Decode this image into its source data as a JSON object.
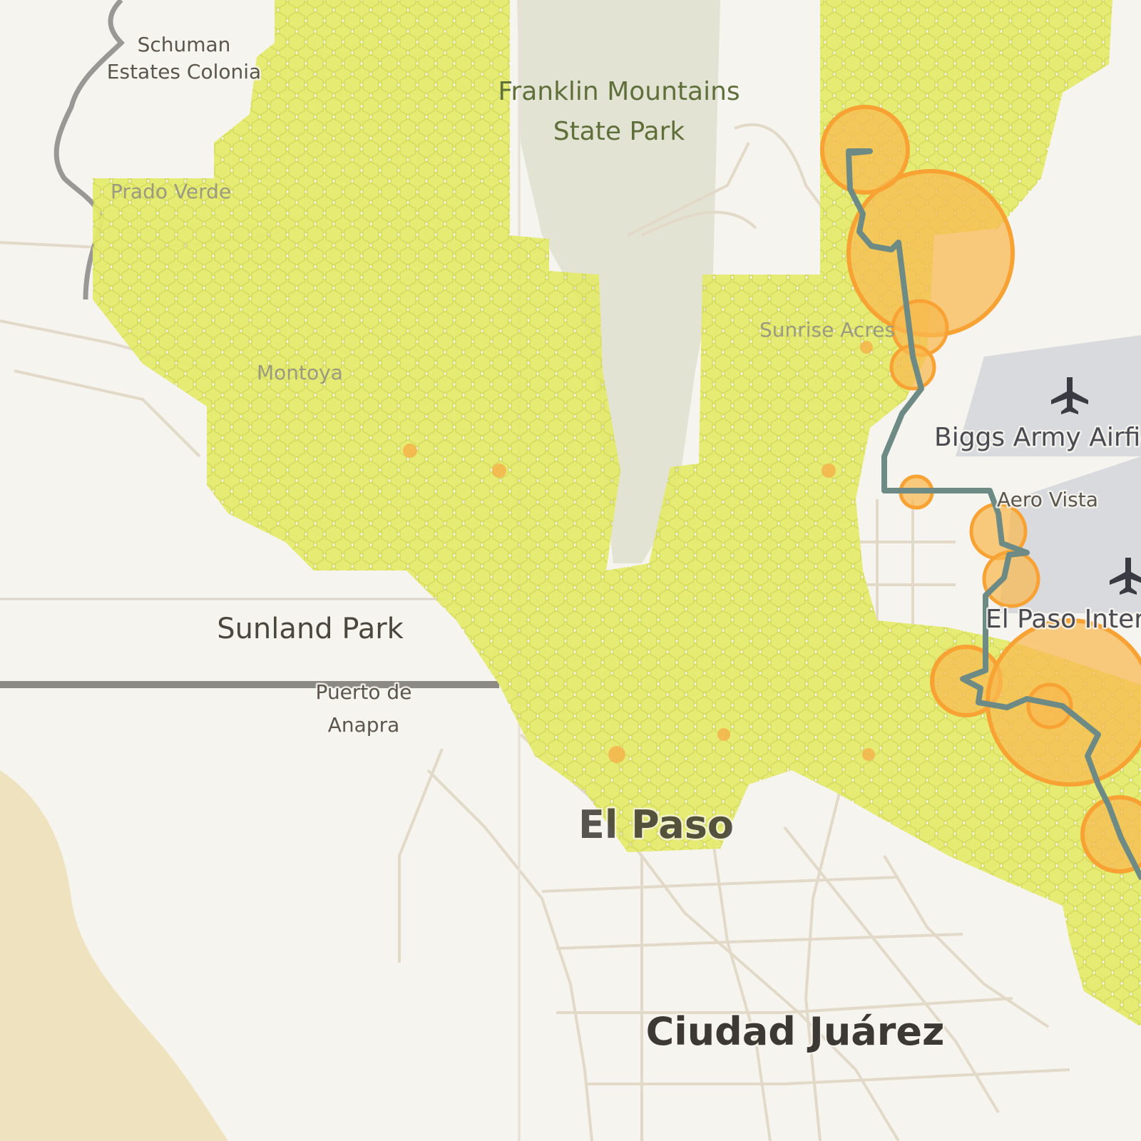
{
  "map": {
    "colors": {
      "background": "#f6f4ee",
      "desert": "#efe2bf",
      "park": "#e3e3d4",
      "road": "#e2d9c8",
      "border": "#8c8a85",
      "river": "#9a9894",
      "airfield": "#d9dade",
      "hex_fill": "#e4ea6c",
      "hex_stroke": "#d3da55",
      "hotspot_fill": "#f8b84f",
      "hotspot_stroke": "#f7a233",
      "route": "#6e8a84"
    },
    "labels": {
      "schuman_line1": "Schuman",
      "schuman_line2": "Estates Colonia",
      "prado_verde": "Prado Verde",
      "franklin_line1": "Franklin Mountains",
      "franklin_line2": "State Park",
      "sunrise": "Sunrise Acres",
      "montoya": "Montoya",
      "biggs": "Biggs Army Airfield",
      "aero_vista": "Aero Vista",
      "ep_intl": "El Paso International",
      "sunland": "Sunland Park",
      "puerto_line1": "Puerto de",
      "puerto_line2": "Anapra",
      "el_paso": "El Paso",
      "juarez": "Ciudad Juárez"
    },
    "icons": {
      "airport1": "airplane-icon",
      "airport2": "airplane-icon"
    }
  }
}
